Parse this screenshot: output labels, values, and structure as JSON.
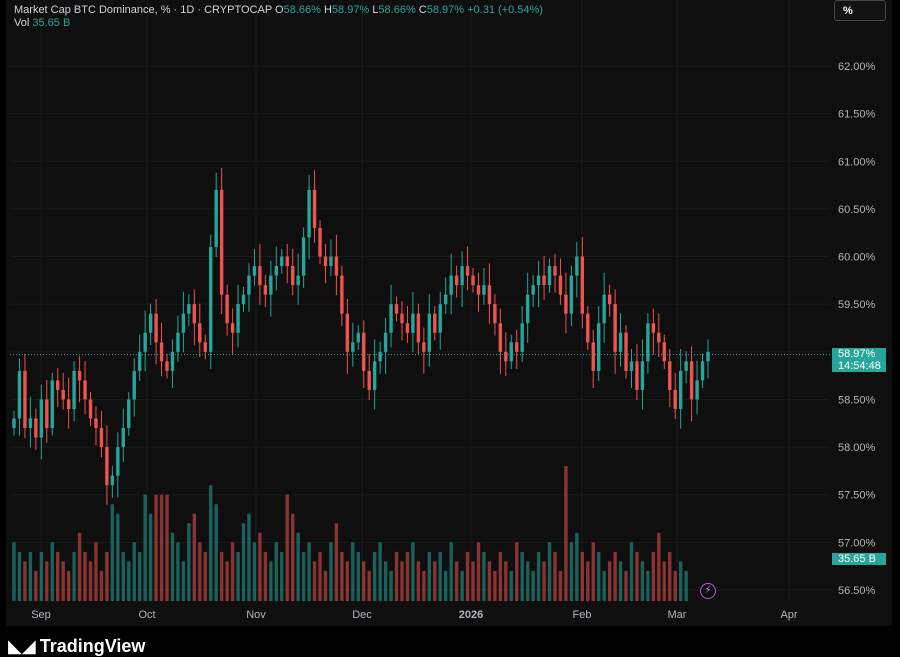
{
  "legend": {
    "symbol": "Market Cap BTC Dominance, % · 1D · CRYPTOCAP",
    "o_label": "O",
    "o_value": "58.66%",
    "h_label": "H",
    "h_value": "58.97%",
    "l_label": "L",
    "l_value": "58.66%",
    "c_label": "C",
    "c_value": "58.97%",
    "change": "+0.31 (+0.54%)",
    "vol_label": "Vol",
    "vol_value": "35.65 B"
  },
  "toolbar": {
    "scale_button": "%"
  },
  "last_price": {
    "value": "58.97%",
    "countdown": "14:54:48"
  },
  "volume_tag": "35.65 B",
  "brand": "TradingView",
  "colors": {
    "up": "#26a69a",
    "down": "#ef5350",
    "background": "#0f0f0f"
  },
  "chart_data": {
    "type": "candlestick",
    "y_unit": "%",
    "ylim": [
      56.4,
      62.5
    ],
    "y_ticks": [
      "62.00%",
      "61.50%",
      "61.00%",
      "60.50%",
      "60.00%",
      "59.50%",
      "59.00%",
      "58.50%",
      "58.00%",
      "57.50%",
      "57.00%",
      "56.50%"
    ],
    "x_ticks": [
      "Sep",
      "Oct",
      "Nov",
      "Dec",
      "2026",
      "Feb",
      "Mar",
      "Apr"
    ],
    "last_close": 58.97,
    "close_series": [
      58.3,
      58.8,
      58.2,
      58.3,
      58.1,
      58.5,
      58.2,
      58.7,
      58.6,
      58.5,
      58.4,
      58.8,
      58.7,
      58.5,
      58.3,
      58.2,
      58.0,
      57.6,
      57.7,
      58.0,
      58.2,
      58.5,
      58.8,
      59.0,
      59.2,
      59.4,
      59.1,
      58.9,
      58.8,
      59.0,
      59.2,
      59.4,
      59.5,
      59.3,
      59.1,
      59.0,
      60.1,
      60.7,
      59.6,
      59.3,
      59.2,
      59.5,
      59.6,
      59.8,
      59.9,
      59.7,
      59.6,
      59.8,
      59.9,
      60.0,
      59.9,
      59.7,
      59.8,
      60.2,
      60.7,
      60.3,
      60.0,
      59.9,
      60.0,
      59.8,
      59.4,
      59.0,
      59.1,
      59.2,
      58.8,
      58.6,
      58.9,
      59.0,
      59.2,
      59.5,
      59.4,
      59.3,
      59.2,
      59.4,
      59.1,
      59.0,
      59.4,
      59.2,
      59.5,
      59.6,
      59.8,
      59.7,
      59.9,
      59.8,
      59.7,
      59.6,
      59.7,
      59.5,
      59.3,
      59.0,
      58.9,
      59.1,
      59.0,
      59.3,
      59.6,
      59.7,
      59.8,
      59.7,
      59.9,
      59.8,
      59.6,
      59.4,
      59.8,
      60.0,
      59.4,
      59.1,
      58.8,
      59.3,
      59.6,
      59.5,
      59.0,
      59.2,
      58.8,
      58.9,
      58.6,
      58.9,
      59.3,
      59.2,
      59.1,
      58.9,
      58.6,
      58.4,
      58.8,
      58.9,
      58.5,
      58.7,
      58.9,
      59.0
    ],
    "volume_series": [
      57.0,
      56.9,
      56.8,
      56.9,
      56.7,
      56.9,
      56.8,
      57.0,
      56.9,
      56.8,
      56.7,
      56.9,
      57.1,
      56.9,
      56.8,
      57.0,
      56.7,
      56.9,
      57.4,
      57.3,
      56.9,
      56.8,
      57.0,
      56.9,
      57.5,
      57.3,
      57.5,
      57.5,
      57.5,
      57.1,
      57.0,
      56.8,
      57.2,
      57.3,
      57.0,
      56.9,
      57.6,
      57.4,
      56.9,
      56.8,
      57.0,
      56.9,
      57.2,
      57.3,
      57.0,
      57.1,
      56.9,
      56.8,
      57.0,
      56.9,
      57.5,
      57.3,
      57.1,
      56.9,
      57.0,
      56.8,
      56.9,
      56.7,
      57.0,
      57.2,
      56.9,
      56.8,
      57.0,
      56.9,
      56.8,
      56.7,
      56.9,
      57.0,
      56.8,
      56.7,
      56.9,
      56.8,
      56.9,
      57.0,
      56.8,
      56.7,
      56.9,
      56.8,
      56.9,
      56.7,
      57.0,
      56.8,
      56.7,
      56.9,
      56.8,
      57.0,
      56.9,
      56.8,
      56.7,
      56.9,
      56.8,
      56.7,
      57.0,
      56.9,
      56.8,
      56.7,
      56.9,
      56.8,
      57.0,
      56.9,
      56.7,
      57.8,
      57.0,
      57.1,
      56.9,
      56.8,
      57.0,
      56.9,
      56.7,
      56.8,
      56.9,
      56.8,
      56.7,
      57.0,
      56.9,
      56.8,
      56.7,
      56.9,
      57.1,
      56.8,
      56.9,
      56.7,
      56.8,
      56.7
    ]
  }
}
